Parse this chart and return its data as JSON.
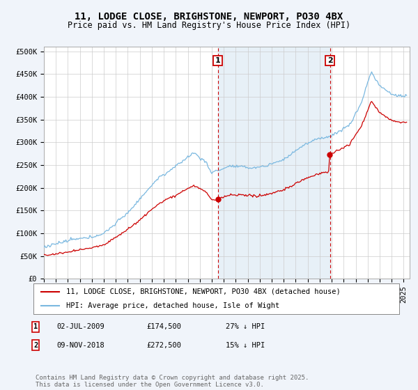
{
  "title": "11, LODGE CLOSE, BRIGHSTONE, NEWPORT, PO30 4BX",
  "subtitle": "Price paid vs. HM Land Registry's House Price Index (HPI)",
  "ylabel_ticks": [
    "£0",
    "£50K",
    "£100K",
    "£150K",
    "£200K",
    "£250K",
    "£300K",
    "£350K",
    "£400K",
    "£450K",
    "£500K"
  ],
  "ytick_values": [
    0,
    50000,
    100000,
    150000,
    200000,
    250000,
    300000,
    350000,
    400000,
    450000,
    500000
  ],
  "ylim": [
    0,
    510000
  ],
  "xlim_start": 1995.0,
  "xlim_end": 2025.5,
  "hpi_color": "#7ab8e0",
  "price_color": "#cc0000",
  "marker1_date": 2009.5,
  "marker1_price": 174500,
  "marker1_label": "02-JUL-2009",
  "marker1_amount": "£174,500",
  "marker1_note": "27% ↓ HPI",
  "marker2_date": 2018.85,
  "marker2_price": 272500,
  "marker2_label": "09-NOV-2018",
  "marker2_amount": "£272,500",
  "marker2_note": "15% ↓ HPI",
  "legend_line1": "11, LODGE CLOSE, BRIGHSTONE, NEWPORT, PO30 4BX (detached house)",
  "legend_line2": "HPI: Average price, detached house, Isle of Wight",
  "footer": "Contains HM Land Registry data © Crown copyright and database right 2025.\nThis data is licensed under the Open Government Licence v3.0.",
  "background_color": "#f0f4fa",
  "plot_bg_color": "#ffffff",
  "grid_color": "#cccccc",
  "title_fontsize": 10,
  "subtitle_fontsize": 8.5,
  "tick_fontsize": 7.5,
  "legend_fontsize": 7.5,
  "footer_fontsize": 6.5
}
